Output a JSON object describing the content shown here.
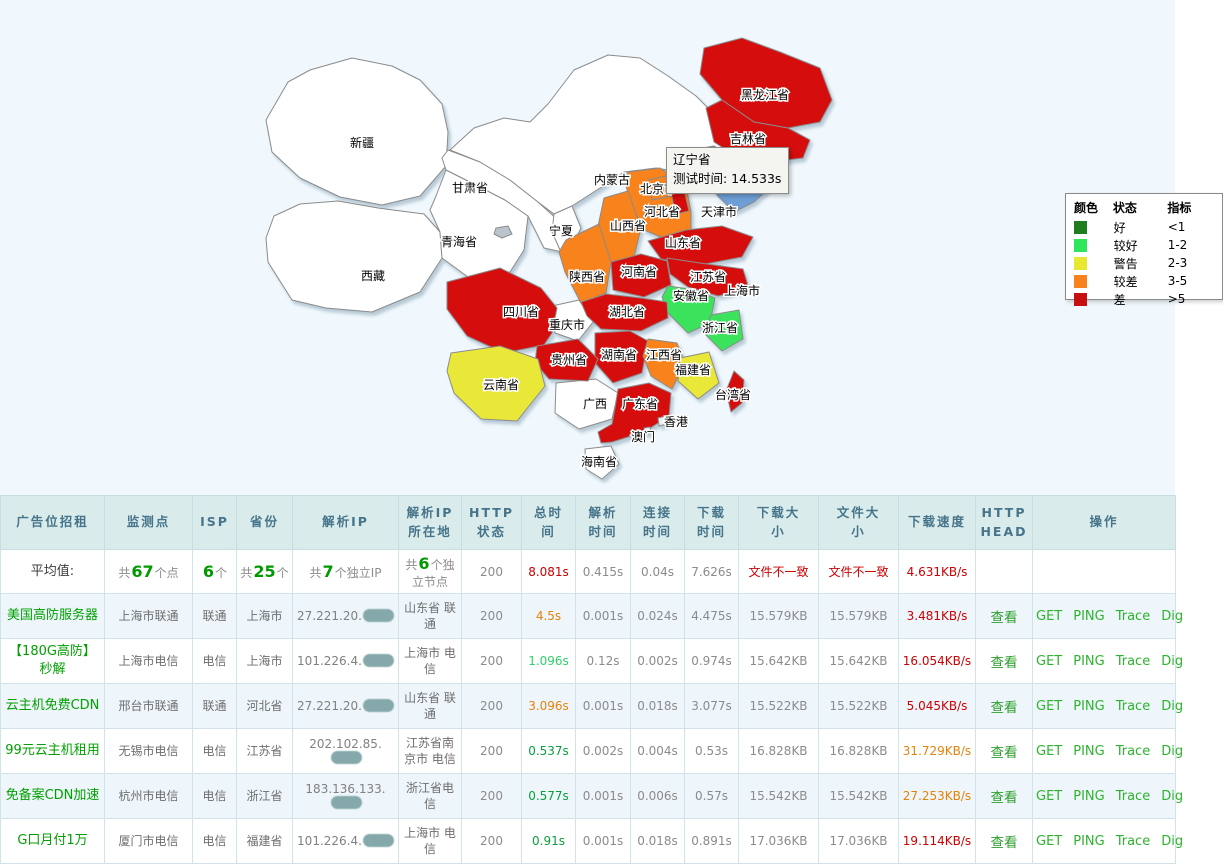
{
  "map": {
    "tooltip": {
      "province": "辽宁省",
      "detail": "测试时间: 14.533s"
    },
    "legend": {
      "headers": [
        "颜色",
        "状态",
        "指标"
      ],
      "rows": [
        {
          "color": "#1f7d1f",
          "status": "好",
          "range": "<1"
        },
        {
          "color": "#2ee65c",
          "status": "较好",
          "range": "1-2"
        },
        {
          "color": "#e8e832",
          "status": "警告",
          "range": "2-3"
        },
        {
          "color": "#f8821c",
          "status": "较差",
          "range": "3-5"
        },
        {
          "color": "#c80f0f",
          "status": "差",
          "range": ">5"
        }
      ]
    },
    "colors": {
      "none": "#ffffff",
      "good": "#1f7d1f",
      "better": "#3be35b",
      "warn": "#e9e838",
      "poor": "#f8821c",
      "bad": "#d60e0e",
      "hover": "#6d9ed6",
      "marker": "#e8eef2"
    },
    "provinces": [
      {
        "id": "xinjiang",
        "name": "新疆",
        "level": "none",
        "label": [
          362,
          147
        ]
      },
      {
        "id": "xizang",
        "name": "西藏",
        "level": "none",
        "label": [
          373,
          280
        ]
      },
      {
        "id": "qinghai",
        "name": "青海省",
        "level": "none",
        "label": [
          459,
          246
        ]
      },
      {
        "id": "gansu",
        "name": "甘肃省",
        "level": "none",
        "label": [
          470,
          192
        ]
      },
      {
        "id": "neimenggu",
        "name": "内蒙古",
        "level": "none",
        "label": [
          612,
          184
        ]
      },
      {
        "id": "ningxia",
        "name": "宁夏",
        "level": "none",
        "label": [
          561,
          235
        ]
      },
      {
        "id": "guangxi",
        "name": "广西",
        "level": "none",
        "label": [
          595,
          408
        ]
      },
      {
        "id": "chongqing",
        "name": "重庆市",
        "level": "none",
        "label": [
          567,
          329
        ]
      },
      {
        "id": "hainan",
        "name": "海南省",
        "level": "none",
        "label": [
          599,
          466
        ]
      },
      {
        "id": "heilongjiang",
        "name": "黑龙江省",
        "level": "bad",
        "label": [
          765,
          99
        ]
      },
      {
        "id": "jilin",
        "name": "吉林省",
        "level": "bad",
        "label": [
          748,
          143
        ]
      },
      {
        "id": "liaoning",
        "name": "辽宁省",
        "level": "hover",
        "label": [
          735,
          174
        ],
        "show_label": false
      },
      {
        "id": "hebei",
        "name": "河北省",
        "level": "poor",
        "label": [
          662,
          216
        ]
      },
      {
        "id": "beijing",
        "name": "北京市",
        "level": "poor",
        "label": [
          658,
          193
        ]
      },
      {
        "id": "tianjin",
        "name": "天津市",
        "level": "bad",
        "label": [
          719,
          216
        ]
      },
      {
        "id": "shanxi",
        "name": "山西省",
        "level": "poor",
        "label": [
          628,
          230
        ]
      },
      {
        "id": "shandong",
        "name": "山东省",
        "level": "bad",
        "label": [
          683,
          247
        ]
      },
      {
        "id": "shaanxi",
        "name": "陕西省",
        "level": "poor",
        "label": [
          587,
          281
        ]
      },
      {
        "id": "henan",
        "name": "河南省",
        "level": "bad",
        "label": [
          639,
          276
        ]
      },
      {
        "id": "jiangsu",
        "name": "江苏省",
        "level": "bad",
        "label": [
          708,
          281
        ]
      },
      {
        "id": "anhui",
        "name": "安徽省",
        "level": "better",
        "label": [
          691,
          300
        ]
      },
      {
        "id": "hubei",
        "name": "湖北省",
        "level": "bad",
        "label": [
          627,
          316
        ]
      },
      {
        "id": "sichuan",
        "name": "四川省",
        "level": "bad",
        "label": [
          521,
          316
        ]
      },
      {
        "id": "zhejiang",
        "name": "浙江省",
        "level": "better",
        "label": [
          720,
          332
        ]
      },
      {
        "id": "hunan",
        "name": "湖南省",
        "level": "bad",
        "label": [
          619,
          359
        ]
      },
      {
        "id": "jiangxi",
        "name": "江西省",
        "level": "poor",
        "label": [
          664,
          359
        ]
      },
      {
        "id": "guizhou",
        "name": "贵州省",
        "level": "bad",
        "label": [
          569,
          364
        ]
      },
      {
        "id": "fujian",
        "name": "福建省",
        "level": "warn",
        "label": [
          693,
          374
        ]
      },
      {
        "id": "yunnan",
        "name": "云南省",
        "level": "warn",
        "label": [
          501,
          389
        ]
      },
      {
        "id": "guangdong",
        "name": "广东省",
        "level": "bad",
        "label": [
          640,
          408
        ]
      },
      {
        "id": "taiwan",
        "name": "台湾省",
        "level": "bad",
        "label": [
          733,
          399
        ]
      },
      {
        "id": "shanghai",
        "name": "上海市",
        "level": "warn",
        "label": [
          742,
          295
        ]
      },
      {
        "id": "hongkong",
        "name": "香港",
        "level": "marker",
        "label": [
          676,
          426
        ]
      },
      {
        "id": "macau",
        "name": "澳门",
        "level": "marker",
        "label": [
          643,
          441
        ]
      }
    ]
  },
  "table": {
    "headers": [
      "广告位招租",
      "监测点",
      "ISP",
      "省份",
      "解析IP",
      "解析IP\n所在地",
      "HTTP\n状态",
      "总时\n间",
      "解析\n时间",
      "连接\n时间",
      "下载\n时间",
      "下载大\n小",
      "文件大\n小",
      "下载速度",
      "HTTP\nHEAD",
      "操作"
    ],
    "head_label": "查看",
    "actions": [
      "GET",
      "PING",
      "Trace",
      "Dig"
    ],
    "average": {
      "label": "平均值:",
      "monitor": {
        "pre": "共",
        "num": "67",
        "suf": "个点"
      },
      "isp": {
        "pre": "",
        "num": "6",
        "suf": "个"
      },
      "province": {
        "pre": "共",
        "num": "25",
        "suf": "个"
      },
      "ip": {
        "pre": "共",
        "num": "7",
        "suf": "个独立IP"
      },
      "ip_location": {
        "pre": "共",
        "num": "6",
        "suf": "个独立节点"
      },
      "http_status": "200",
      "total_time": {
        "v": "8.081s",
        "c": "red"
      },
      "dns_time": "0.415s",
      "connect_time": "0.04s",
      "download_time": "7.626s",
      "download_size": {
        "v": "文件不一致",
        "c": "red"
      },
      "file_size": {
        "v": "文件不一致",
        "c": "red"
      },
      "speed": {
        "v": "4.631KB/s",
        "c": "red"
      }
    },
    "rows": [
      {
        "ad": "美国高防服务器",
        "monitor": "上海市联通",
        "isp": "联通",
        "province": "上海市",
        "ip": "27.221.20.",
        "ip_location": "山东省 联通",
        "http_status": "200",
        "total_time": {
          "v": "4.5s",
          "c": "orange"
        },
        "dns_time": "0.001s",
        "connect_time": "0.024s",
        "download_time": "4.475s",
        "download_size": "15.579KB",
        "file_size": "15.579KB",
        "speed": {
          "v": "3.481KB/s",
          "c": "red"
        }
      },
      {
        "ad": "【180G高防】秒解",
        "monitor": "上海市电信",
        "isp": "电信",
        "province": "上海市",
        "ip": "101.226.4.",
        "ip_location": "上海市 电信",
        "http_status": "200",
        "total_time": {
          "v": "1.096s",
          "c": "lgreen"
        },
        "dns_time": "0.12s",
        "connect_time": "0.002s",
        "download_time": "0.974s",
        "download_size": "15.642KB",
        "file_size": "15.642KB",
        "speed": {
          "v": "16.054KB/s",
          "c": "red"
        }
      },
      {
        "ad": "云主机免费CDN",
        "monitor": "邢台市联通",
        "isp": "联通",
        "province": "河北省",
        "ip": "27.221.20.",
        "ip_location": "山东省 联通",
        "http_status": "200",
        "total_time": {
          "v": "3.096s",
          "c": "orange"
        },
        "dns_time": "0.001s",
        "connect_time": "0.018s",
        "download_time": "3.077s",
        "download_size": "15.522KB",
        "file_size": "15.522KB",
        "speed": {
          "v": "5.045KB/s",
          "c": "red"
        }
      },
      {
        "ad": "99元云主机租用",
        "monitor": "无锡市电信",
        "isp": "电信",
        "province": "江苏省",
        "ip": "202.102.85.",
        "ip_location": "江苏省南京市 电信",
        "http_status": "200",
        "total_time": {
          "v": "0.537s",
          "c": "green"
        },
        "dns_time": "0.002s",
        "connect_time": "0.004s",
        "download_time": "0.53s",
        "download_size": "16.828KB",
        "file_size": "16.828KB",
        "speed": {
          "v": "31.729KB/s",
          "c": "orange"
        }
      },
      {
        "ad": "免备案CDN加速",
        "monitor": "杭州市电信",
        "isp": "电信",
        "province": "浙江省",
        "ip": "183.136.133.",
        "ip_location": "浙江省电信",
        "http_status": "200",
        "total_time": {
          "v": "0.577s",
          "c": "green"
        },
        "dns_time": "0.001s",
        "connect_time": "0.006s",
        "download_time": "0.57s",
        "download_size": "15.542KB",
        "file_size": "15.542KB",
        "speed": {
          "v": "27.253KB/s",
          "c": "orange"
        }
      },
      {
        "ad": "G口月付1万",
        "monitor": "厦门市电信",
        "isp": "电信",
        "province": "福建省",
        "ip": "101.226.4.",
        "ip_location": "上海市 电信",
        "http_status": "200",
        "total_time": {
          "v": "0.91s",
          "c": "green"
        },
        "dns_time": "0.001s",
        "connect_time": "0.018s",
        "download_time": "0.891s",
        "download_size": "17.036KB",
        "file_size": "17.036KB",
        "speed": {
          "v": "19.114KB/s",
          "c": "red"
        }
      }
    ]
  }
}
